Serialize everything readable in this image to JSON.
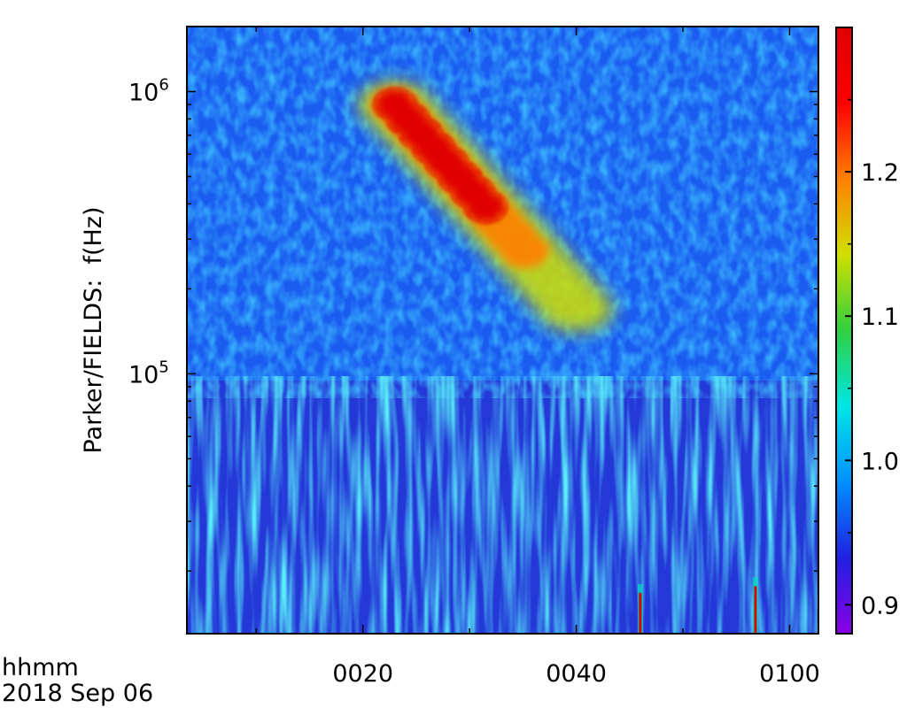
{
  "chart_data": {
    "type": "heatmap",
    "title": "",
    "ylabel": "Parker/FIELDS:  f(Hz)",
    "y_scale": "log",
    "ylim_hz": [
      12000,
      1700000
    ],
    "y_major_ticks": [
      {
        "value": 100000,
        "base": "10",
        "exp": "5"
      },
      {
        "value": 1000000,
        "base": "10",
        "exp": "6"
      }
    ],
    "x_axis": {
      "units": "hhmm",
      "date": "2018 Sep 06",
      "range_minutes_after_0000": [
        3.5,
        62.7
      ],
      "ticks": [
        "0020",
        "0040",
        "0100"
      ],
      "tick_minutes": [
        20,
        40,
        60
      ],
      "minor_tick_minutes": [
        10,
        30,
        50
      ]
    },
    "colorbar": {
      "range": [
        0.88,
        1.3
      ],
      "tick_labels": [
        "0.9",
        "1.0",
        "1.1",
        "1.2"
      ],
      "tick_values": [
        0.9,
        1.0,
        1.1,
        1.2
      ],
      "minor_tick_values": [
        0.95,
        1.05,
        1.15,
        1.25
      ],
      "colormap": [
        "#8a00e6",
        "#2020e0",
        "#0090ff",
        "#00e6e6",
        "#30d040",
        "#d0e000",
        "#ff8000",
        "#ff0000",
        "#e00000"
      ]
    },
    "features": [
      {
        "name": "radio burst",
        "start_min": 23,
        "end_min": 40,
        "freq_start_hz": 900000,
        "freq_end_hz": 170000,
        "peak_value": 1.28
      },
      {
        "name": "spike",
        "time_min": 46,
        "freq_top_hz": 18000,
        "value": 1.3
      },
      {
        "name": "spike",
        "time_min": 56.8,
        "freq_top_hz": 19000,
        "value": 1.3
      }
    ]
  }
}
